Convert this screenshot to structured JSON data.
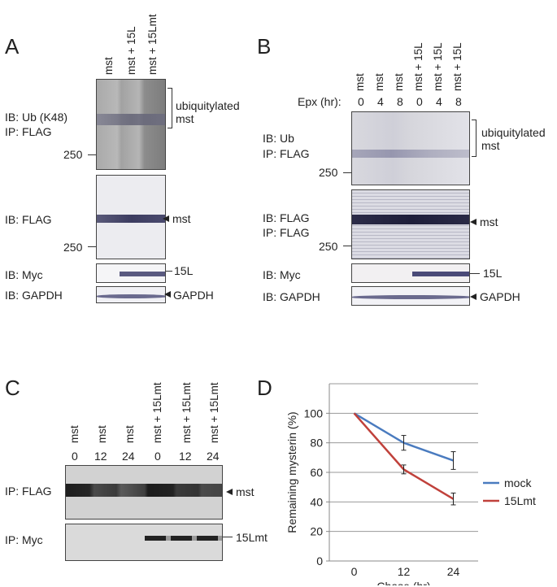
{
  "panels": {
    "A": {
      "letter": "A",
      "lanes": [
        "mst",
        "mst + 15L",
        "mst + 15Lmt"
      ],
      "blot1": {
        "ib": "IB: Ub (K48)",
        "ip": "IP: FLAG",
        "marker": "250",
        "side_label_1": "ubiquitylated",
        "side_label_2": "mst"
      },
      "blot2": {
        "ib": "IB: FLAG",
        "marker": "250",
        "side_label": "mst"
      },
      "blot3": {
        "ib": "IB: Myc",
        "side_label": "15L"
      },
      "blot4": {
        "ib": "IB: GAPDH",
        "side_label": "GAPDH"
      }
    },
    "B": {
      "letter": "B",
      "lanes": [
        "mst",
        "mst",
        "mst",
        "mst + 15L",
        "mst + 15L",
        "mst + 15L"
      ],
      "epx_label": "Epx (hr):",
      "epx_values": [
        "0",
        "4",
        "8",
        "0",
        "4",
        "8"
      ],
      "blot1": {
        "ib": "IB: Ub",
        "ip": "IP: FLAG",
        "marker": "250",
        "side_label_1": "ubiquitylated",
        "side_label_2": "mst"
      },
      "blot2": {
        "ib": "IB: FLAG",
        "ip": "IP: FLAG",
        "marker": "250",
        "side_label": "mst"
      },
      "blot3": {
        "ib": "IB: Myc",
        "side_label": "15L"
      },
      "blot4": {
        "ib": "IB: GAPDH",
        "side_label": "GAPDH"
      }
    },
    "C": {
      "letter": "C",
      "lanes": [
        "mst",
        "mst",
        "mst",
        "mst + 15Lmt",
        "mst + 15Lmt",
        "mst + 15Lmt"
      ],
      "times": [
        "0",
        "12",
        "24",
        "0",
        "12",
        "24"
      ],
      "blot1": {
        "ip": "IP: FLAG",
        "side_label": "mst"
      },
      "blot2": {
        "ip": "IP: Myc",
        "side_label": "15Lmt"
      }
    },
    "D": {
      "letter": "D"
    }
  },
  "chart_data": {
    "type": "line",
    "x": [
      0,
      12,
      24
    ],
    "series": [
      {
        "name": "mock",
        "values": [
          100,
          80,
          68
        ],
        "errors": [
          0,
          5,
          6
        ],
        "color": "#4a7bbf"
      },
      {
        "name": "15Lmt",
        "values": [
          100,
          62,
          42
        ],
        "errors": [
          0,
          3,
          4
        ],
        "color": "#c0413b"
      }
    ],
    "xlabel": "Chase (hr)",
    "ylabel": "Remaining mysterin (%)",
    "ylim": [
      0,
      120
    ],
    "yticks": [
      0,
      20,
      40,
      60,
      80,
      100
    ],
    "xticks": [
      "0",
      "12",
      "24"
    ],
    "grid": true,
    "legend": "right"
  }
}
